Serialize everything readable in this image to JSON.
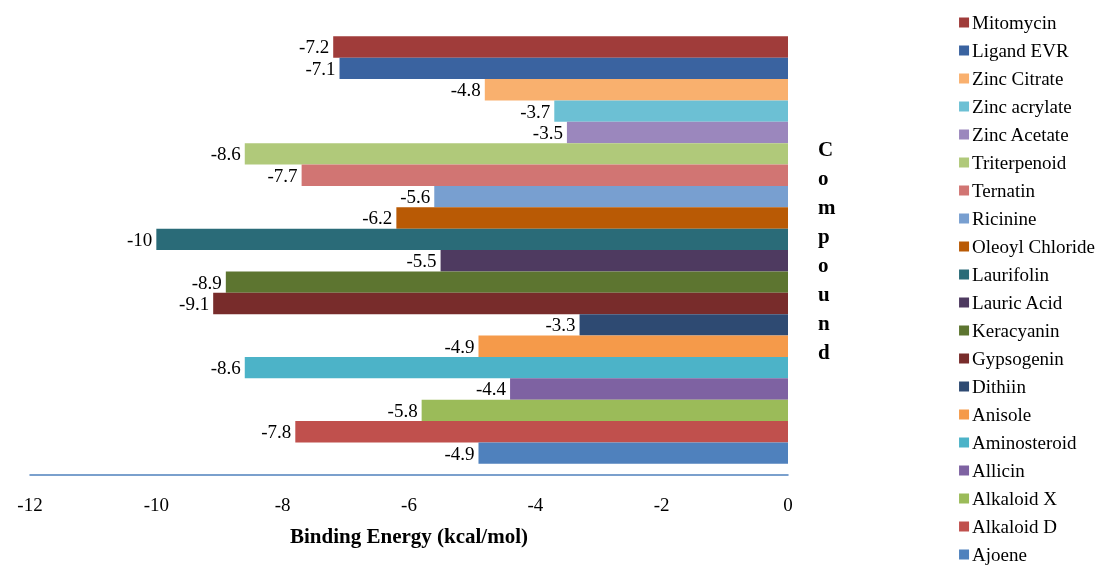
{
  "chart_data": {
    "type": "bar",
    "orientation": "horizontal",
    "xlabel": "Binding Energy (kcal/mol)",
    "ylabel": "Compound",
    "categories": [
      null
    ],
    "series": [
      {
        "name": "Mitomycin",
        "color": "#a03c3a",
        "values": [
          -7.2
        ]
      },
      {
        "name": "Ligand EVR",
        "color": "#3a63a0",
        "values": [
          -7.1
        ]
      },
      {
        "name": "Zinc Citrate",
        "color": "#f9b06e",
        "values": [
          -4.8
        ]
      },
      {
        "name": "Zinc acrylate",
        "color": "#6cc0d4",
        "values": [
          -3.7
        ]
      },
      {
        "name": "Zinc Acetate",
        "color": "#9b87bd",
        "values": [
          -3.5
        ]
      },
      {
        "name": "Triterpenoid",
        "color": "#b0c97a",
        "values": [
          -8.6
        ]
      },
      {
        "name": "Ternatin",
        "color": "#d17573",
        "values": [
          -7.7
        ]
      },
      {
        "name": "Ricinine",
        "color": "#789fd0",
        "values": [
          -5.6
        ]
      },
      {
        "name": "Oleoyl Chloride",
        "color": "#b95a05",
        "values": [
          -6.2
        ]
      },
      {
        "name": "Laurifolin",
        "color": "#2a6b78",
        "values": [
          -10
        ]
      },
      {
        "name": "Lauric Acid",
        "color": "#4e3a60",
        "values": [
          -5.5
        ]
      },
      {
        "name": "Keracyanin",
        "color": "#5d7530",
        "values": [
          -8.9
        ]
      },
      {
        "name": "Gypsogenin",
        "color": "#782c2b",
        "values": [
          -9.1
        ]
      },
      {
        "name": "Dithiin",
        "color": "#2e4a72",
        "values": [
          -3.3
        ]
      },
      {
        "name": "Anisole",
        "color": "#f59a4a",
        "values": [
          -4.9
        ]
      },
      {
        "name": "Aminosteroid",
        "color": "#4cb3c8",
        "values": [
          -8.6
        ]
      },
      {
        "name": "Allicin",
        "color": "#7e62a2",
        "values": [
          -4.4
        ]
      },
      {
        "name": "Alkaloid X",
        "color": "#9bbb59",
        "values": [
          -5.8
        ]
      },
      {
        "name": "Alkaloid D",
        "color": "#c0504d",
        "values": [
          -7.8
        ]
      },
      {
        "name": "Ajoene",
        "color": "#4f81bd",
        "values": [
          -4.9
        ]
      }
    ],
    "xlim": [
      -12,
      0
    ],
    "xticks": [
      -12,
      -10,
      -8,
      -6,
      -4,
      -2,
      0
    ],
    "data_labels": true,
    "legend": "right",
    "grid": false
  }
}
